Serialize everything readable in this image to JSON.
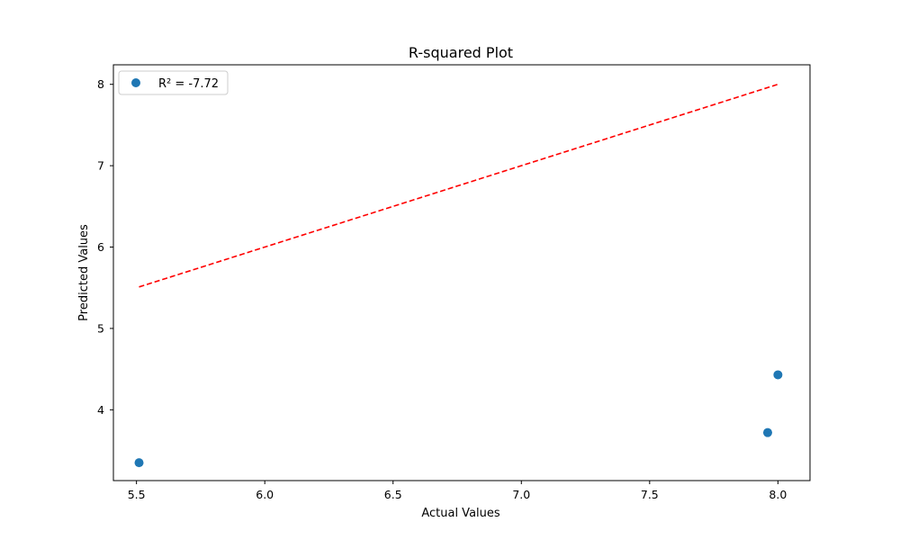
{
  "chart_data": {
    "type": "scatter",
    "title": "R-squared Plot",
    "xlabel": "Actual Values",
    "ylabel": "Predicted Values",
    "xlim": [
      5.41,
      8.125
    ],
    "ylim": [
      3.13,
      8.24
    ],
    "xticks": [
      5.5,
      6.0,
      6.5,
      7.0,
      7.5,
      8.0
    ],
    "xtick_labels": [
      "5.5",
      "6.0",
      "6.5",
      "7.0",
      "7.5",
      "8.0"
    ],
    "yticks": [
      4,
      5,
      6,
      7,
      8
    ],
    "ytick_labels": [
      "4",
      "5",
      "6",
      "7",
      "8"
    ],
    "grid": false,
    "legend_position": "top-left",
    "series": [
      {
        "name": "R² = -7.72",
        "kind": "scatter",
        "color": "#1f77b4",
        "x": [
          5.51,
          7.96,
          8.0
        ],
        "y": [
          3.35,
          3.72,
          4.43
        ]
      }
    ],
    "reference_line": {
      "style": "dashed",
      "color": "#ff0000",
      "x": [
        5.51,
        8.0
      ],
      "y": [
        5.51,
        8.0
      ]
    }
  }
}
